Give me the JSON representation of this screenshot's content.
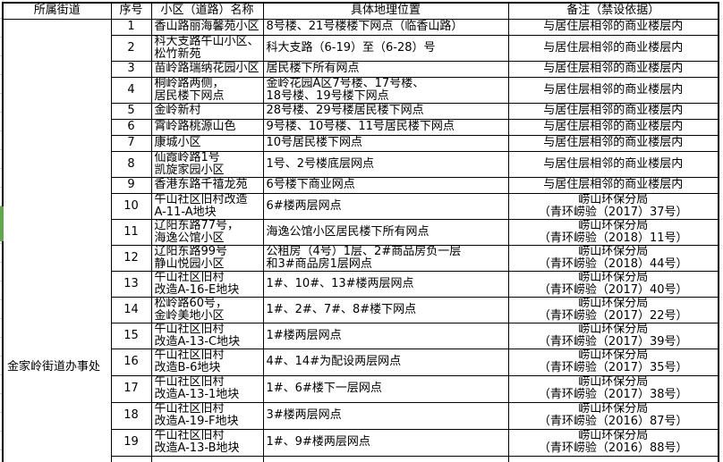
{
  "colors": {
    "border": "#000000",
    "selection_green": "#62a74e",
    "gridline": "#c9c9c9"
  },
  "table": {
    "headers": {
      "street": "所属街道",
      "no": "序号",
      "name": "小区（道路）名称",
      "location": "具体地理位置",
      "remark": "备注（禁设依据）"
    },
    "street_office": "金家岭街道办事处",
    "rows": [
      {
        "no": "1",
        "name": "香山路丽海馨苑小区",
        "location": "8号楼、21号楼楼下网点（临香山路）",
        "remark": "与居住层相邻的商业楼层内"
      },
      {
        "no": "2",
        "name": "科大支路午山小区、\n松竹新苑",
        "location": "科大支路（6-19）至（6-28）号",
        "remark": "与居住层相邻的商业楼层内"
      },
      {
        "no": "3",
        "name": "苗岭路瑞纳花园小区",
        "location": "居民楼下所有网点",
        "remark": "与居住层相邻的商业楼层内"
      },
      {
        "no": "4",
        "name": "桐岭路两侧，\n居民楼下网点",
        "location": "金岭花园A区7号楼、17号楼、\n18号楼、19号楼下网点",
        "remark": "与居住层相邻的商业楼层内"
      },
      {
        "no": "5",
        "name": "金岭新村",
        "location": "28号楼、29号楼居民楼下网点",
        "remark": "与居住层相邻的商业楼层内"
      },
      {
        "no": "6",
        "name": "霄岭路桃源山色",
        "location": "9号楼、10号楼、11号居民楼下网点",
        "remark": "与居住层相邻的商业楼层内"
      },
      {
        "no": "7",
        "name": "康城小区",
        "location": "10号居民楼下网点",
        "remark": "与居住层相邻的商业楼层内"
      },
      {
        "no": "8",
        "name": "仙霞岭路1号\n凯旋家园小区",
        "location": "1号、2号楼底层网点",
        "remark": "与居住层相邻的商业楼层内"
      },
      {
        "no": "9",
        "name": "香港东路千禧龙苑",
        "location": "6号楼下商业网点",
        "remark": "与居住层相邻的商业楼层内"
      },
      {
        "no": "10",
        "name": "午山社区旧村改造\nA-11-A地块",
        "location": "6#楼两层网点",
        "remark": "崂山环保分局\n（青环崂验（2017）37号）"
      },
      {
        "no": "11",
        "name": "辽阳东路77号，\n海逸公馆小区",
        "location": "海逸公馆小区居民楼下所有网点",
        "remark": "崂山环保分局\n（青环崂验（2018）11号）"
      },
      {
        "no": "12",
        "name": "辽阳东路99号\n静山悦园小区",
        "location": "公租房（4号）1层、2#商品房负一层\n和3#商品房1层网点",
        "remark": "崂山环保分局\n（青环崂验（2018）44号）"
      },
      {
        "no": "13",
        "name": "午山社区旧村\n改造A-16-E地块",
        "location": "1#、10#、13#楼两层网点",
        "remark": "崂山环保分局\n（青环崂验（2017）40号）"
      },
      {
        "no": "14",
        "name": "松岭路60号，\n金岭美地小区",
        "location": "1#、2#、7#、8#楼下网点",
        "remark": "崂山环保分局\n（青环崂验（2017）22号）"
      },
      {
        "no": "15",
        "name": "午山社区旧村\n改造A-13-C地块",
        "location": "1#楼两层网点",
        "remark": "崂山环保分局\n（青环崂验（2017）39号）"
      },
      {
        "no": "16",
        "name": "午山社区旧村\n改造B-6地块",
        "location": "4#、14#为配设两层网点",
        "remark": "崂山环保分局\n（青环崂验（2017）35号）"
      },
      {
        "no": "17",
        "name": "午山社区旧村\n改造A-13-1地块",
        "location": "1#、6#楼下一层网点",
        "remark": "崂山环保分局\n（青环崂验（2017）38号）"
      },
      {
        "no": "18",
        "name": "午山社区旧村\n改造A-19-F地块",
        "location": "3#楼两层网点",
        "remark": "崂山环保分局\n（青环崂验（2016）87号）"
      },
      {
        "no": "19",
        "name": "午山社区旧村\n改造A-13-B地块",
        "location": "1#、9#楼两层网点",
        "remark": "崂山环保分局\n（青环崂验（2016）88号）"
      }
    ]
  }
}
